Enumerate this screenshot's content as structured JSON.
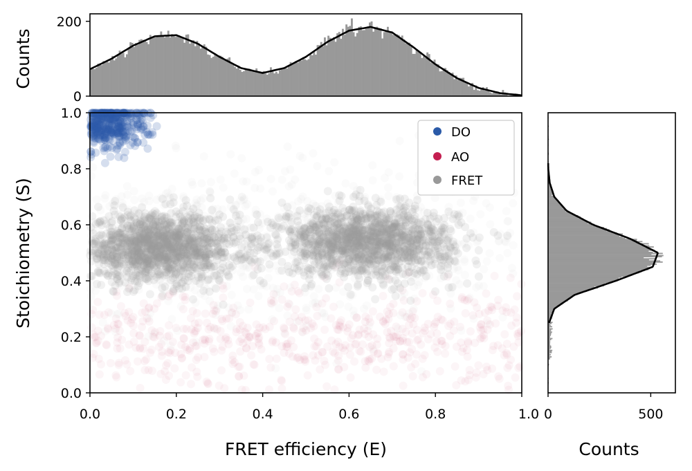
{
  "colors": {
    "do": "#2b5aa8",
    "ao": "#c41e50",
    "fret": "#999999",
    "fit_line": "#000000",
    "axes": "#000000",
    "legend_border": "#cccccc"
  },
  "legend": {
    "placement": "top-right",
    "items": [
      {
        "label": "DO",
        "color": "#2b5aa8"
      },
      {
        "label": "AO",
        "color": "#c41e50"
      },
      {
        "label": "FRET",
        "color": "#999999"
      }
    ]
  },
  "chart_data": [
    {
      "type": "scatter",
      "xlabel": "FRET efficiency (E)",
      "ylabel": "Stoichiometry (S)",
      "xlim": [
        0.0,
        1.0
      ],
      "ylim": [
        0.0,
        1.0
      ],
      "xticks": [
        0.0,
        0.2,
        0.4,
        0.6,
        0.8,
        1.0
      ],
      "xtick_labels": [
        "0.0",
        "0.2",
        "0.4",
        "0.6",
        "0.8",
        "1.0"
      ],
      "yticks": [
        0.0,
        0.2,
        0.4,
        0.6,
        0.8,
        1.0
      ],
      "ytick_labels": [
        "0.0",
        "0.2",
        "0.4",
        "0.6",
        "0.8",
        "1.0"
      ],
      "grid": false,
      "series": [
        {
          "name": "DO",
          "populations": [
            {
              "E_center": 0.04,
              "S_center": 0.96,
              "E_width": 0.05,
              "S_width": 0.05
            }
          ]
        },
        {
          "name": "AO",
          "populations": [
            {
              "E_range": [
                0.0,
                1.0
              ],
              "S_center": 0.2,
              "S_width": 0.09
            }
          ]
        },
        {
          "name": "FRET",
          "populations": [
            {
              "E_center": 0.16,
              "S_center": 0.52,
              "E_width": 0.09,
              "S_width": 0.06
            },
            {
              "E_center": 0.64,
              "S_center": 0.54,
              "E_width": 0.1,
              "S_width": 0.06
            }
          ]
        }
      ]
    },
    {
      "type": "bar",
      "role": "marginal-histogram-E",
      "xlim": [
        0.0,
        1.0
      ],
      "ylim": [
        0,
        220
      ],
      "ylabel": "Counts",
      "yticks": [
        0,
        200
      ],
      "ytick_labels": [
        "0",
        "200"
      ],
      "x": [
        0.0,
        0.05,
        0.1,
        0.15,
        0.2,
        0.25,
        0.3,
        0.35,
        0.4,
        0.45,
        0.5,
        0.55,
        0.6,
        0.65,
        0.7,
        0.75,
        0.8,
        0.85,
        0.9,
        0.95,
        1.0
      ],
      "fit": [
        72,
        100,
        135,
        160,
        163,
        140,
        105,
        75,
        62,
        75,
        105,
        145,
        175,
        185,
        170,
        130,
        85,
        48,
        22,
        8,
        2
      ]
    },
    {
      "type": "bar",
      "role": "marginal-histogram-S",
      "orientation": "horizontal",
      "ylim": [
        0.0,
        1.0
      ],
      "xlim": [
        0,
        620
      ],
      "xlabel": "Counts",
      "xticks": [
        0,
        500
      ],
      "xtick_labels": [
        "0",
        "500"
      ],
      "S": [
        0.2,
        0.25,
        0.3,
        0.35,
        0.4,
        0.45,
        0.5,
        0.55,
        0.6,
        0.65,
        0.7,
        0.75,
        0.8,
        0.85,
        0.9
      ],
      "fit": [
        0,
        5,
        30,
        130,
        330,
        510,
        535,
        400,
        220,
        90,
        30,
        8,
        1,
        0,
        0
      ]
    }
  ]
}
